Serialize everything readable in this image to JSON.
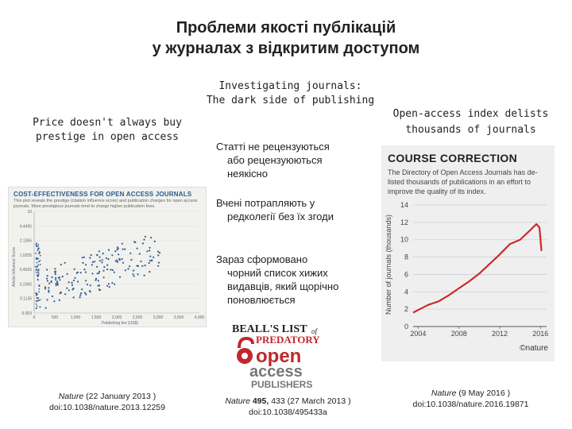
{
  "title": {
    "line1": "Проблеми якості публікацій",
    "line2": "у журналах з відкритим доступом"
  },
  "left": {
    "heading_line1": "Price doesn't always buy",
    "heading_line2": "prestige in open access",
    "panel": {
      "title": "COST-EFFECTIVENESS FOR OPEN ACCESS JOURNALS",
      "subtitle": "This plot reveals the prestige (citation influence score) and publication charges for open access journals. More prestigious journals tend to charge higher publication fees.",
      "ylabel": "Article Influence Score",
      "xlabel": "Publishing fee (US$)",
      "y_ticks": [
        "10",
        "4.4495",
        "2.1365",
        "1.0255",
        "0.4925",
        "0.2365",
        "0.1135",
        "0.053"
      ],
      "x_ticks": [
        "0",
        "500",
        "1,000",
        "1,500",
        "2,000",
        "2,500",
        "3,000",
        "3,500",
        "4,000"
      ]
    },
    "ref_journal": "Nature",
    "ref_date": " (22 January 2013 )",
    "ref_doi": "doi:10.1038/nature.2013.12259"
  },
  "middle": {
    "heading_line1": "Investigating journals:",
    "heading_line2": "The dark side of publishing",
    "bullets": [
      {
        "line1": "Статті не рецензуються",
        "line2": "або рецензуюються",
        "line3": "неякісно"
      },
      {
        "line1": "Вчені потрапляють у",
        "line2": "редколегії без їх згоди"
      },
      {
        "line1": "Зараз сформовано",
        "line2": "чорний список хижих",
        "line3": "видавців, який щорічно",
        "line4": "поновлюється"
      }
    ],
    "logo": {
      "line1": "BEALL'S LIST",
      "of": "of",
      "line2": "PREDATORY",
      "line3": "open",
      "line4": "access",
      "line5": "PUBLISHERS"
    },
    "ref_journal": "Nature",
    "ref_volume": " 495,",
    "ref_pages": " 433  (27 March 2013 )",
    "ref_doi": "doi:10.1038/495433a"
  },
  "right": {
    "heading_line1": "Open-access index delists",
    "heading_line2": "thousands of journals",
    "panel": {
      "title": "COURSE CORRECTION",
      "subtitle": "The Directory of Open Access Journals has de-listed thousands of publications in an effort to improve the quality of its index.",
      "ylabel": "Number of journals (thousands)",
      "brand": "©nature"
    },
    "ref_journal": "Nature",
    "ref_date": " (9 May 2016 )",
    "ref_doi": "doi:10.1038/nature.2016.19871"
  },
  "chart_data": [
    {
      "type": "line",
      "title": "COURSE CORRECTION",
      "ylabel": "Number of journals (thousands)",
      "x": [
        2003.5,
        2004,
        2005,
        2006,
        2007,
        2008,
        2009,
        2010,
        2011,
        2012,
        2013,
        2014,
        2015,
        2015.6,
        2015.9,
        2016.1
      ],
      "series": [
        {
          "values": [
            1.6,
            1.9,
            2.5,
            2.9,
            3.6,
            4.4,
            5.2,
            6.1,
            7.2,
            8.3,
            9.5,
            10.0,
            11.1,
            11.8,
            11.4,
            8.7
          ]
        }
      ],
      "x_ticks": [
        2004,
        2008,
        2012,
        2016
      ],
      "y_ticks": [
        0,
        2,
        4,
        6,
        8,
        10,
        12,
        14
      ],
      "xlim": [
        2003.5,
        2016.6
      ],
      "ylim": [
        0,
        14
      ],
      "grid": true,
      "color": "#cc2b2b"
    }
  ],
  "colors": {
    "scatter_point": "#2f5f8f",
    "line_red": "#cc2b2b",
    "beall_red": "#c0282d",
    "beall_gray": "#777777"
  }
}
